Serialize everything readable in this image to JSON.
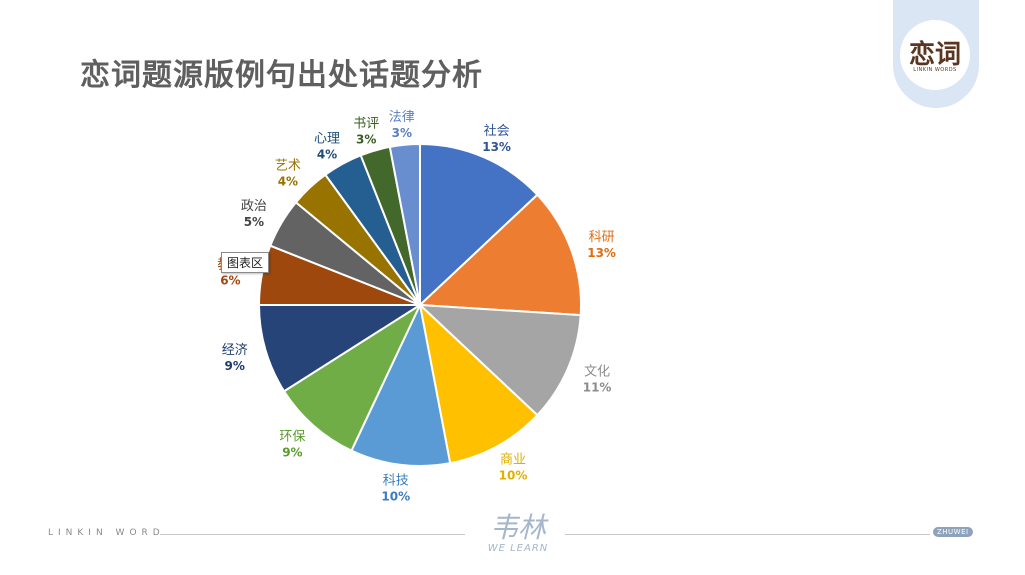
{
  "slide": {
    "title": "恋词题源版例句出处话题分析",
    "tooltip": "图表区",
    "logo": {
      "text": "恋词",
      "sub": "LINKIN WORDS"
    },
    "footer": {
      "left": "LINKIN WORD",
      "brand": "韦林",
      "brand_sub": "WE LEARN",
      "badge": "ZHUWEI"
    }
  },
  "chart_data": {
    "type": "pie",
    "start": "top, clockwise",
    "slices": [
      {
        "label": "社会",
        "value": 13,
        "value_label": "13%",
        "color": "#4472c4",
        "label_color": "#2f5597"
      },
      {
        "label": "科研",
        "value": 13,
        "value_label": "13%",
        "color": "#ed7d31",
        "label_color": "#e26b10"
      },
      {
        "label": "文化",
        "value": 11,
        "value_label": "11%",
        "color": "#a5a5a5",
        "label_color": "#8c8c8c"
      },
      {
        "label": "商业",
        "value": 10,
        "value_label": "10%",
        "color": "#ffc000",
        "label_color": "#e0b000"
      },
      {
        "label": "科技",
        "value": 10,
        "value_label": "10%",
        "color": "#5b9bd5",
        "label_color": "#3a7cbf"
      },
      {
        "label": "环保",
        "value": 9,
        "value_label": "9%",
        "color": "#70ad47",
        "label_color": "#5a9a2f"
      },
      {
        "label": "经济",
        "value": 9,
        "value_label": "9%",
        "color": "#264478",
        "label_color": "#1f3c6e"
      },
      {
        "label": "教育",
        "value": 6,
        "value_label": "6%",
        "color": "#9e480e",
        "label_color": "#a14a10"
      },
      {
        "label": "政治",
        "value": 5,
        "value_label": "5%",
        "color": "#636363",
        "label_color": "#444444"
      },
      {
        "label": "艺术",
        "value": 4,
        "value_label": "4%",
        "color": "#997300",
        "label_color": "#997300"
      },
      {
        "label": "心理",
        "value": 4,
        "value_label": "4%",
        "color": "#255e91",
        "label_color": "#1f4e79"
      },
      {
        "label": "书评",
        "value": 3,
        "value_label": "3%",
        "color": "#43682b",
        "label_color": "#3b5e22"
      },
      {
        "label": "法律",
        "value": 3,
        "value_label": "3%",
        "color": "#698ed0",
        "label_color": "#5b7fc0"
      }
    ]
  }
}
